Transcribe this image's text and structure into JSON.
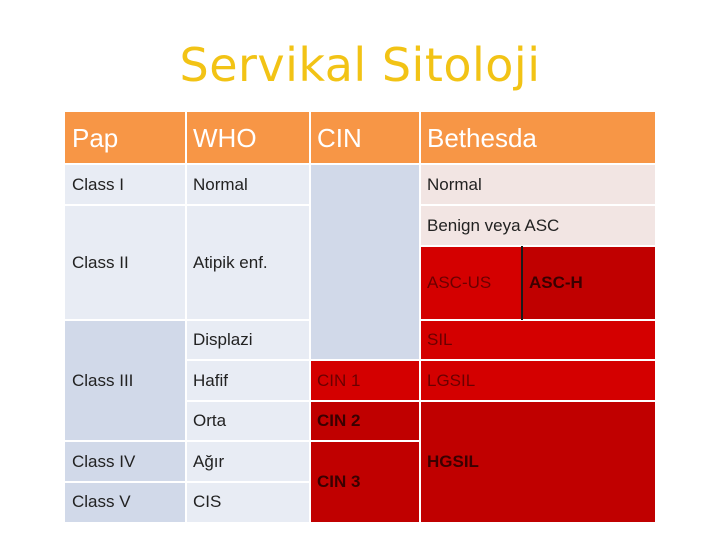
{
  "title": "Servikal Sitoloji",
  "headers": {
    "pap": "Pap",
    "who": "WHO",
    "cin": "CIN",
    "bethesda": "Bethesda"
  },
  "pap": {
    "class1": "Class I",
    "class2": "Class II",
    "class3": "Class III",
    "class4": "Class IV",
    "class5": "Class V"
  },
  "who": {
    "normal": "Normal",
    "atipik": "Atipik enf.",
    "displazi": "Displazi",
    "hafif": "Hafif",
    "orta": "Orta",
    "agir": "Ağır",
    "cis": "CIS"
  },
  "cin": {
    "cin1": "CIN 1",
    "cin2": "CIN 2",
    "cin3": "CIN 3"
  },
  "bethesda": {
    "normal": "Normal",
    "benign": "Benign veya ASC",
    "ascus": "ASC-US",
    "asch": "ASC-H",
    "sil": "SIL",
    "lgsil": "LGSIL",
    "hgsil": "HGSIL"
  },
  "colors": {
    "title": "#f2c315",
    "header": "#f79646",
    "light_blue": "#e8ecf4",
    "mid_blue": "#d1d9e9",
    "pink": "#f2e5e3",
    "red": "#d40000",
    "dark_red": "#c00000"
  }
}
